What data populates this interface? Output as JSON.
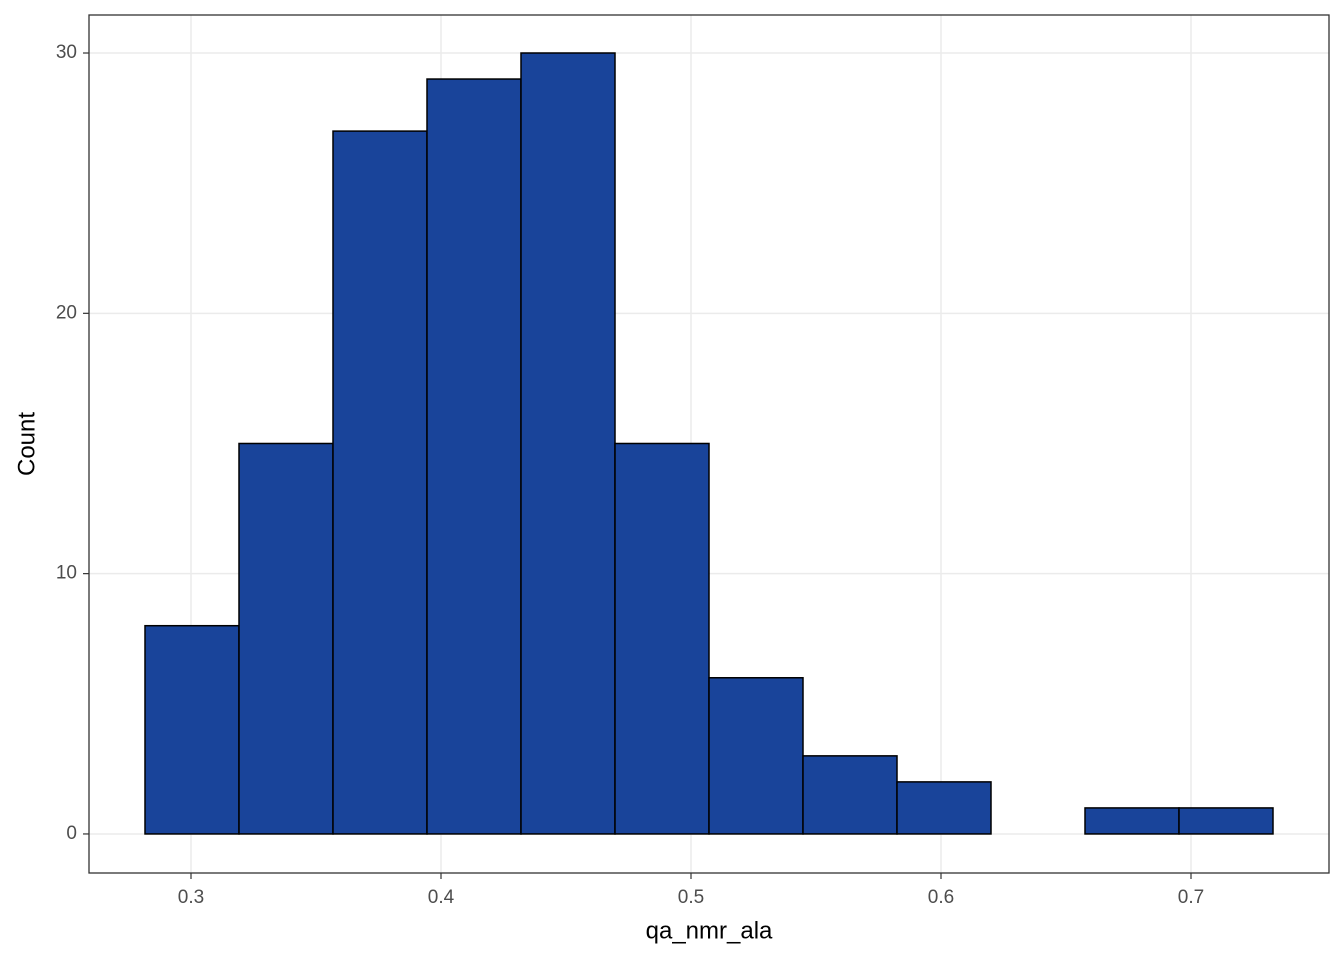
{
  "chart_data": {
    "type": "histogram",
    "x_label": "qa_nmr_ala",
    "y_label": "Count",
    "bins": [
      0.2816,
      0.3192,
      0.3568,
      0.3944,
      0.432,
      0.4696,
      0.5072,
      0.5448,
      0.5824,
      0.62,
      0.6576,
      0.6952,
      0.7328
    ],
    "values": [
      8,
      15,
      27,
      29,
      30,
      15,
      6,
      3,
      2,
      0,
      1,
      1
    ],
    "color": "#19449a",
    "xlim": [
      0.2592,
      0.7552
    ],
    "ylim": [
      -1.5,
      31.46
    ],
    "xticks": [
      0.3,
      0.4,
      0.5,
      0.6,
      0.7
    ],
    "yticks": [
      0,
      10,
      20,
      30
    ],
    "grid": true
  }
}
